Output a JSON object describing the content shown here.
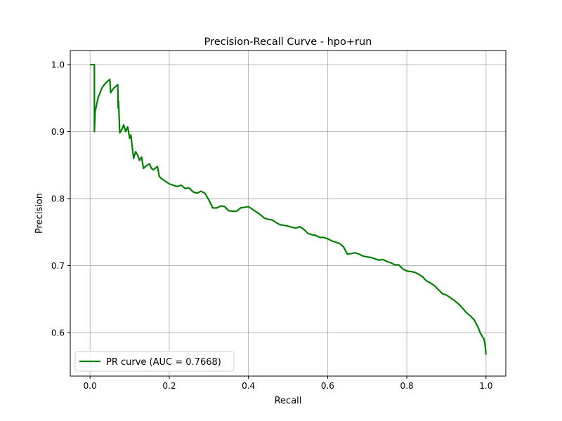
{
  "chart_data": {
    "type": "line",
    "title": "Precision-Recall Curve - hpo+run",
    "xlabel": "Recall",
    "ylabel": "Precision",
    "xlim": [
      -0.05,
      1.05
    ],
    "ylim": [
      0.535,
      1.021
    ],
    "xticks": [
      0.0,
      0.2,
      0.4,
      0.6,
      0.8,
      1.0
    ],
    "xtick_labels": [
      "0.0",
      "0.2",
      "0.4",
      "0.6",
      "0.8",
      "1.0"
    ],
    "yticks": [
      0.6,
      0.7,
      0.8,
      0.9,
      1.0
    ],
    "ytick_labels": [
      "0.6",
      "0.7",
      "0.8",
      "0.9",
      "1.0"
    ],
    "grid": true,
    "legend_position": "lower-left",
    "series": [
      {
        "name": "PR curve (AUC = 0.7668)",
        "color": "#008000",
        "x": [
          0.0,
          0.011,
          0.011,
          0.013,
          0.02,
          0.03,
          0.04,
          0.05,
          0.052,
          0.06,
          0.07,
          0.071,
          0.072,
          0.075,
          0.08,
          0.085,
          0.09,
          0.095,
          0.1,
          0.103,
          0.11,
          0.115,
          0.12,
          0.125,
          0.13,
          0.135,
          0.14,
          0.15,
          0.155,
          0.16,
          0.17,
          0.175,
          0.18,
          0.19,
          0.2,
          0.21,
          0.22,
          0.23,
          0.24,
          0.25,
          0.26,
          0.27,
          0.28,
          0.29,
          0.3,
          0.31,
          0.32,
          0.33,
          0.34,
          0.35,
          0.36,
          0.37,
          0.38,
          0.39,
          0.4,
          0.41,
          0.42,
          0.43,
          0.44,
          0.45,
          0.46,
          0.47,
          0.48,
          0.49,
          0.5,
          0.51,
          0.52,
          0.53,
          0.54,
          0.55,
          0.56,
          0.57,
          0.58,
          0.59,
          0.6,
          0.61,
          0.62,
          0.63,
          0.64,
          0.65,
          0.66,
          0.67,
          0.68,
          0.69,
          0.7,
          0.71,
          0.72,
          0.73,
          0.74,
          0.75,
          0.76,
          0.77,
          0.78,
          0.79,
          0.8,
          0.81,
          0.82,
          0.83,
          0.84,
          0.85,
          0.86,
          0.87,
          0.88,
          0.89,
          0.9,
          0.91,
          0.92,
          0.93,
          0.94,
          0.95,
          0.96,
          0.97,
          0.98,
          0.985,
          0.99,
          0.995,
          0.998,
          1.0
        ],
        "y": [
          1.0,
          1.0,
          0.9,
          0.93,
          0.95,
          0.965,
          0.973,
          0.978,
          0.958,
          0.965,
          0.97,
          0.935,
          0.945,
          0.898,
          0.903,
          0.91,
          0.9,
          0.907,
          0.89,
          0.895,
          0.86,
          0.87,
          0.865,
          0.857,
          0.862,
          0.845,
          0.848,
          0.852,
          0.845,
          0.843,
          0.848,
          0.833,
          0.83,
          0.826,
          0.822,
          0.82,
          0.818,
          0.82,
          0.815,
          0.816,
          0.81,
          0.808,
          0.811,
          0.808,
          0.798,
          0.786,
          0.786,
          0.789,
          0.788,
          0.782,
          0.781,
          0.781,
          0.786,
          0.787,
          0.788,
          0.784,
          0.78,
          0.776,
          0.771,
          0.769,
          0.768,
          0.764,
          0.761,
          0.76,
          0.759,
          0.757,
          0.756,
          0.758,
          0.754,
          0.748,
          0.746,
          0.745,
          0.742,
          0.742,
          0.74,
          0.737,
          0.735,
          0.733,
          0.728,
          0.717,
          0.718,
          0.719,
          0.717,
          0.714,
          0.713,
          0.712,
          0.71,
          0.708,
          0.709,
          0.706,
          0.704,
          0.701,
          0.701,
          0.695,
          0.692,
          0.691,
          0.69,
          0.687,
          0.683,
          0.677,
          0.674,
          0.67,
          0.664,
          0.658,
          0.656,
          0.652,
          0.648,
          0.643,
          0.637,
          0.63,
          0.625,
          0.619,
          0.608,
          0.6,
          0.595,
          0.59,
          0.58,
          0.567
        ]
      }
    ]
  }
}
